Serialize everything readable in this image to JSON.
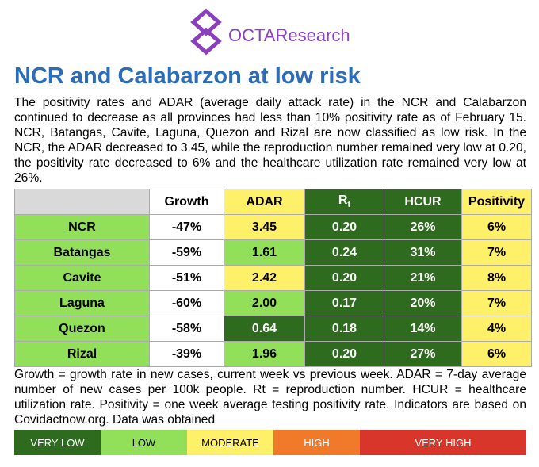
{
  "logo": {
    "text": "OCTAResearch"
  },
  "title": "NCR and Calabarzon at low risk",
  "intro": "The positivity rates and ADAR (average daily attack rate) in the NCR and Calabarzon continued to decrease as all provinces had less than 10% positivity rate as of February 15. NCR, Batangas, Cavite, Laguna, Quezon and Rizal are now classified as low risk. In the NCR, the ADAR decreased to 3.45, while the reproduction number remained very low at 0.20, the positivity rate decreased to 6% and the healthcare utilization rate remained very low at 26%.",
  "table": {
    "header": [
      "Growth",
      "ADAR",
      {
        "main": "R",
        "sub": "t"
      },
      "HCUR",
      "Positivity"
    ],
    "rows": [
      [
        "NCR",
        "-47%",
        "3.45",
        "0.20",
        "26%",
        "6%"
      ],
      [
        "Batangas",
        "-59%",
        "1.61",
        "0.24",
        "31%",
        "7%"
      ],
      [
        "Cavite",
        "-51%",
        "2.42",
        "0.20",
        "21%",
        "8%"
      ],
      [
        "Laguna",
        "-60%",
        "2.00",
        "0.17",
        "20%",
        "7%"
      ],
      [
        "Quezon",
        "-58%",
        "0.64",
        "0.18",
        "14%",
        "4%"
      ],
      [
        "Rizal",
        "-39%",
        "1.96",
        "0.20",
        "27%",
        "6%"
      ]
    ]
  },
  "footnote": "Growth = growth rate in new cases, current week vs previous week. ADAR = 7-day average number of new cases per 100k people. Rt = reproduction number. HCUR = healthcare utilization rate. Positivity = one week average testing positivity rate. Indicators are based on Covidactnow.org. Data was obtained",
  "legend": [
    "VERY LOW",
    "LOW",
    "MODERATE",
    "HIGH",
    "VERY HIGH"
  ]
}
